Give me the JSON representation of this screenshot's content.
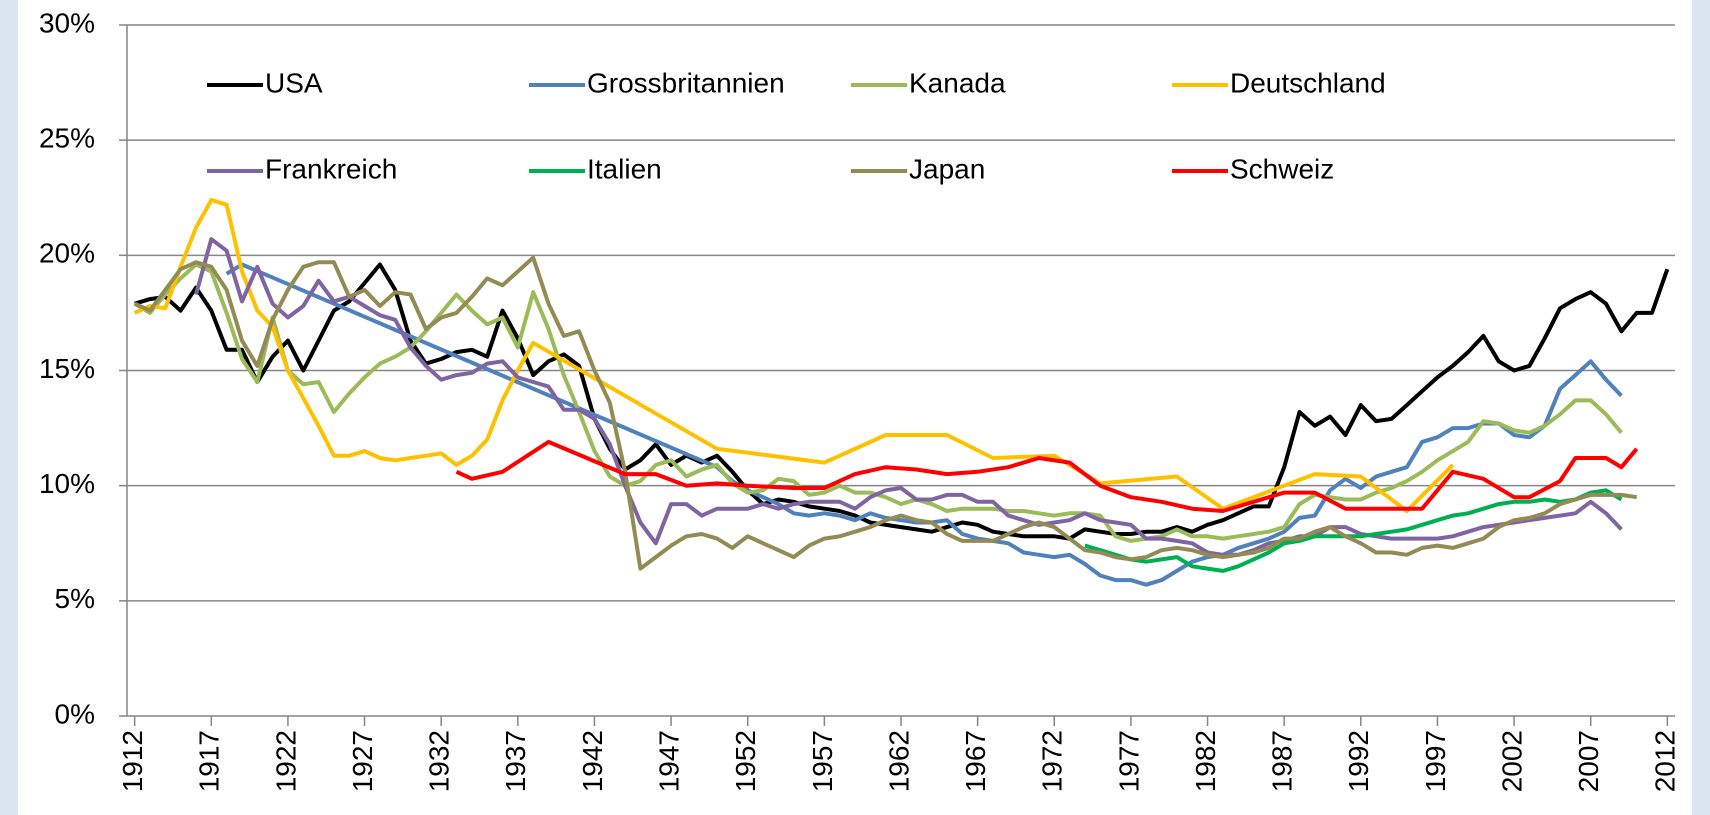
{
  "chart_data": {
    "type": "line",
    "xlim": [
      1911.5,
      2012.5
    ],
    "xticks": [
      1912,
      1917,
      1922,
      1927,
      1932,
      1937,
      1942,
      1947,
      1952,
      1957,
      1962,
      1967,
      1972,
      1977,
      1982,
      1987,
      1992,
      1997,
      2002,
      2007,
      2012
    ],
    "ylim": [
      0,
      30
    ],
    "yticks": [
      {
        "value": 0,
        "label": "0%"
      },
      {
        "value": 5,
        "label": "5%"
      },
      {
        "value": 10,
        "label": "10%"
      },
      {
        "value": 15,
        "label": "15%"
      },
      {
        "value": 20,
        "label": "20%"
      },
      {
        "value": 25,
        "label": "25%"
      },
      {
        "value": 30,
        "label": "30%"
      }
    ],
    "grid": true,
    "legend": "top",
    "series": [
      {
        "name": "USA",
        "color": "#000000",
        "x": [
          1912,
          1913,
          1914,
          1915,
          1916,
          1917,
          1918,
          1919,
          1920,
          1921,
          1922,
          1923,
          1924,
          1925,
          1926,
          1927,
          1928,
          1929,
          1930,
          1931,
          1932,
          1933,
          1934,
          1935,
          1936,
          1937,
          1938,
          1939,
          1940,
          1941,
          1942,
          1943,
          1944,
          1945,
          1946,
          1947,
          1948,
          1949,
          1950,
          1951,
          1952,
          1953,
          1954,
          1955,
          1956,
          1957,
          1958,
          1959,
          1960,
          1961,
          1962,
          1963,
          1964,
          1965,
          1966,
          1967,
          1968,
          1969,
          1970,
          1971,
          1972,
          1973,
          1974,
          1975,
          1976,
          1977,
          1978,
          1979,
          1980,
          1981,
          1982,
          1983,
          1984,
          1985,
          1986,
          1987,
          1988,
          1989,
          1990,
          1991,
          1992,
          1993,
          1994,
          1995,
          1996,
          1997,
          1998,
          1999,
          2000,
          2001,
          2002,
          2003,
          2004,
          2005,
          2006,
          2007,
          2008,
          2009,
          2010,
          2011,
          2012
        ],
        "values": [
          17.9,
          18.1,
          18.2,
          17.6,
          18.6,
          17.6,
          15.9,
          15.9,
          14.5,
          15.6,
          16.3,
          15.0,
          16.3,
          17.6,
          18.0,
          18.8,
          19.6,
          18.5,
          16.3,
          15.3,
          15.5,
          15.8,
          15.9,
          15.6,
          17.6,
          16.4,
          14.8,
          15.4,
          15.7,
          15.2,
          12.9,
          11.6,
          10.7,
          11.1,
          11.8,
          10.9,
          11.3,
          11.0,
          11.3,
          10.6,
          9.8,
          9.2,
          9.4,
          9.3,
          9.1,
          9.0,
          8.9,
          8.7,
          8.4,
          8.3,
          8.2,
          8.1,
          8.0,
          8.2,
          8.4,
          8.3,
          8.0,
          7.9,
          7.8,
          7.8,
          7.8,
          7.7,
          8.1,
          8.0,
          7.9,
          7.9,
          8.0,
          8.0,
          8.2,
          8.0,
          8.3,
          8.5,
          8.8,
          9.1,
          9.1,
          10.8,
          13.2,
          12.6,
          13.0,
          12.2,
          13.5,
          12.8,
          12.9,
          13.5,
          14.1,
          14.7,
          15.2,
          15.8,
          16.5,
          15.4,
          15.0,
          15.2,
          16.4,
          17.7,
          18.1,
          18.4,
          17.9,
          16.7,
          17.5,
          17.5,
          19.4
        ]
      },
      {
        "name": "Grossbritannien",
        "color": "#4f81bd",
        "x": [
          1918,
          1919,
          1950,
          1951,
          1952,
          1953,
          1954,
          1955,
          1956,
          1957,
          1958,
          1959,
          1960,
          1961,
          1962,
          1963,
          1964,
          1965,
          1966,
          1967,
          1968,
          1969,
          1970,
          1971,
          1972,
          1973,
          1974,
          1975,
          1976,
          1977,
          1978,
          1979,
          1980,
          1981,
          1982,
          1983,
          1984,
          1985,
          1986,
          1987,
          1988,
          1989,
          1990,
          1991,
          1992,
          1993,
          1994,
          1995,
          1996,
          1997,
          1998,
          1999,
          2000,
          2001,
          2002,
          2003,
          2004,
          2005,
          2006,
          2007,
          2008,
          2009
        ],
        "values": [
          19.2,
          19.6,
          10.8,
          10.2,
          9.8,
          9.5,
          9.2,
          8.8,
          8.7,
          8.8,
          8.7,
          8.5,
          8.8,
          8.6,
          8.5,
          8.4,
          8.4,
          8.5,
          7.9,
          7.7,
          7.6,
          7.5,
          7.1,
          7.0,
          6.9,
          7.0,
          6.6,
          6.1,
          5.9,
          5.9,
          5.7,
          5.9,
          6.3,
          6.7,
          6.9,
          7.0,
          7.3,
          7.5,
          7.7,
          8.0,
          8.6,
          8.7,
          9.8,
          10.3,
          9.9,
          10.4,
          10.6,
          10.8,
          11.9,
          12.1,
          12.5,
          12.5,
          12.7,
          12.7,
          12.2,
          12.1,
          12.6,
          14.2,
          14.8,
          15.4,
          14.6,
          13.9
        ]
      },
      {
        "name": "Kanada",
        "color": "#9bbb59",
        "x": [
          1912,
          1913,
          1914,
          1915,
          1916,
          1917,
          1918,
          1919,
          1920,
          1921,
          1922,
          1923,
          1924,
          1925,
          1926,
          1927,
          1928,
          1929,
          1930,
          1931,
          1932,
          1933,
          1934,
          1935,
          1936,
          1937,
          1938,
          1939,
          1940,
          1941,
          1942,
          1943,
          1944,
          1945,
          1946,
          1947,
          1948,
          1949,
          1950,
          1951,
          1952,
          1953,
          1954,
          1955,
          1956,
          1957,
          1958,
          1959,
          1960,
          1961,
          1962,
          1963,
          1964,
          1965,
          1966,
          1967,
          1968,
          1969,
          1970,
          1971,
          1972,
          1973,
          1974,
          1975,
          1976,
          1977,
          1978,
          1979,
          1980,
          1981,
          1982,
          1983,
          1984,
          1985,
          1986,
          1987,
          1988,
          1989,
          1990,
          1991,
          1992,
          1993,
          1994,
          1995,
          1996,
          1997,
          1998,
          1999,
          2000,
          2001,
          2002,
          2003,
          2004,
          2005,
          2006,
          2007,
          2008,
          2009
        ],
        "values": [
          17.9,
          17.5,
          18.3,
          19.0,
          19.6,
          19.3,
          17.5,
          15.5,
          14.5,
          17.3,
          15.0,
          14.4,
          14.5,
          13.2,
          14.0,
          14.7,
          15.3,
          15.6,
          16.0,
          16.7,
          17.5,
          18.3,
          17.6,
          17.0,
          17.3,
          16.0,
          18.4,
          16.8,
          14.8,
          13.2,
          11.5,
          10.4,
          10.0,
          10.2,
          10.9,
          11.1,
          10.4,
          10.7,
          10.9,
          10.1,
          9.7,
          9.8,
          10.3,
          10.2,
          9.6,
          9.7,
          10.0,
          9.7,
          9.7,
          9.5,
          9.2,
          9.4,
          9.2,
          8.9,
          9.0,
          9.0,
          9.0,
          8.9,
          8.9,
          8.8,
          8.7,
          8.8,
          8.8,
          8.7,
          7.8,
          7.6,
          7.7,
          7.8,
          8.1,
          7.8,
          7.8,
          7.7,
          7.8,
          7.9,
          8.0,
          8.2,
          9.2,
          9.6,
          9.5,
          9.4,
          9.4,
          9.7,
          9.9,
          10.2,
          10.6,
          11.1,
          11.5,
          11.9,
          12.8,
          12.7,
          12.4,
          12.3,
          12.6,
          13.1,
          13.7,
          13.7,
          13.1,
          12.3
        ]
      },
      {
        "name": "Deutschland",
        "color": "#ffc000",
        "x": [
          1912,
          1913,
          1914,
          1915,
          1916,
          1917,
          1918,
          1919,
          1920,
          1921,
          1922,
          1923,
          1924,
          1925,
          1926,
          1927,
          1928,
          1929,
          1930,
          1931,
          1932,
          1933,
          1934,
          1935,
          1936,
          1937,
          1938,
          1950,
          1957,
          1961,
          1965,
          1968,
          1972,
          1975,
          1980,
          1983,
          1989,
          1992,
          1995,
          1998
        ],
        "values": [
          17.5,
          17.8,
          17.7,
          19.5,
          21.2,
          22.4,
          22.2,
          19.3,
          17.6,
          16.9,
          15.0,
          13.8,
          12.6,
          11.3,
          11.3,
          11.5,
          11.2,
          11.1,
          11.2,
          11.3,
          11.4,
          10.9,
          11.3,
          12.0,
          13.7,
          15.0,
          16.2,
          11.6,
          11.0,
          12.2,
          12.2,
          11.2,
          11.3,
          10.1,
          10.4,
          9.0,
          10.5,
          10.4,
          8.9,
          10.9
        ]
      },
      {
        "name": "Frankreich",
        "color": "#8064a2",
        "x": [
          1916,
          1917,
          1918,
          1919,
          1920,
          1921,
          1922,
          1923,
          1924,
          1925,
          1926,
          1927,
          1928,
          1929,
          1930,
          1931,
          1932,
          1933,
          1934,
          1935,
          1936,
          1937,
          1938,
          1939,
          1940,
          1941,
          1942,
          1943,
          1944,
          1945,
          1946,
          1947,
          1948,
          1949,
          1950,
          1951,
          1952,
          1953,
          1954,
          1955,
          1956,
          1957,
          1958,
          1959,
          1960,
          1961,
          1962,
          1963,
          1964,
          1965,
          1966,
          1967,
          1968,
          1969,
          1970,
          1971,
          1972,
          1973,
          1974,
          1975,
          1976,
          1977,
          1978,
          1979,
          1980,
          1981,
          1982,
          1983,
          1984,
          1985,
          1986,
          1987,
          1988,
          1989,
          1990,
          1991,
          1992,
          1993,
          1994,
          1995,
          1996,
          1997,
          1998,
          1999,
          2000,
          2001,
          2002,
          2003,
          2004,
          2005,
          2006,
          2007,
          2008,
          2009
        ],
        "values": [
          18.3,
          20.7,
          20.2,
          18.0,
          19.5,
          17.9,
          17.3,
          17.8,
          18.9,
          18.0,
          18.2,
          17.8,
          17.4,
          17.2,
          16.0,
          15.2,
          14.6,
          14.8,
          14.9,
          15.3,
          15.4,
          14.7,
          14.5,
          14.3,
          13.3,
          13.3,
          12.9,
          11.8,
          10.0,
          8.4,
          7.5,
          9.2,
          9.2,
          8.7,
          9.0,
          9.0,
          9.0,
          9.2,
          9.0,
          9.2,
          9.3,
          9.3,
          9.3,
          9.0,
          9.5,
          9.8,
          9.9,
          9.4,
          9.4,
          9.6,
          9.6,
          9.3,
          9.3,
          8.7,
          8.5,
          8.3,
          8.4,
          8.5,
          8.8,
          8.5,
          8.4,
          8.3,
          7.7,
          7.7,
          7.6,
          7.5,
          7.1,
          7.0,
          7.0,
          7.2,
          7.5,
          7.6,
          7.8,
          7.8,
          8.2,
          8.2,
          7.9,
          7.8,
          7.7,
          7.7,
          7.7,
          7.7,
          7.8,
          8.0,
          8.2,
          8.3,
          8.4,
          8.5,
          8.6,
          8.7,
          8.8,
          9.3,
          8.8,
          8.1
        ]
      },
      {
        "name": "Italien",
        "color": "#00b050",
        "x": [
          1974,
          1975,
          1976,
          1977,
          1978,
          1979,
          1980,
          1981,
          1982,
          1983,
          1984,
          1985,
          1986,
          1987,
          1988,
          1989,
          1990,
          1991,
          1992,
          1993,
          1994,
          1995,
          1996,
          1997,
          1998,
          1999,
          2000,
          2001,
          2002,
          2003,
          2004,
          2005,
          2006,
          2007,
          2008,
          2009
        ],
        "values": [
          7.4,
          7.2,
          7.0,
          6.8,
          6.7,
          6.8,
          6.9,
          6.5,
          6.4,
          6.3,
          6.5,
          6.8,
          7.1,
          7.5,
          7.6,
          7.8,
          7.8,
          7.8,
          7.8,
          7.9,
          8.0,
          8.1,
          8.3,
          8.5,
          8.7,
          8.8,
          9.0,
          9.2,
          9.3,
          9.3,
          9.4,
          9.3,
          9.4,
          9.7,
          9.8,
          9.4
        ]
      },
      {
        "name": "Japan",
        "color": "#948a54",
        "x": [
          1912,
          1913,
          1914,
          1915,
          1916,
          1917,
          1918,
          1919,
          1920,
          1921,
          1922,
          1923,
          1924,
          1925,
          1926,
          1927,
          1928,
          1929,
          1930,
          1931,
          1932,
          1933,
          1934,
          1935,
          1936,
          1937,
          1938,
          1939,
          1940,
          1941,
          1942,
          1943,
          1944,
          1945,
          1946,
          1947,
          1948,
          1949,
          1950,
          1951,
          1952,
          1953,
          1954,
          1955,
          1956,
          1957,
          1958,
          1959,
          1960,
          1961,
          1962,
          1963,
          1964,
          1965,
          1966,
          1967,
          1968,
          1969,
          1970,
          1971,
          1972,
          1973,
          1974,
          1975,
          1976,
          1977,
          1978,
          1979,
          1980,
          1981,
          1982,
          1983,
          1984,
          1985,
          1986,
          1987,
          1988,
          1989,
          1990,
          1991,
          1992,
          1993,
          1994,
          1995,
          1996,
          1997,
          1998,
          1999,
          2000,
          2001,
          2002,
          2003,
          2004,
          2005,
          2006,
          2007,
          2008,
          2009,
          2010
        ],
        "values": [
          17.9,
          17.6,
          18.5,
          19.4,
          19.7,
          19.5,
          18.5,
          16.3,
          15.2,
          17.2,
          18.5,
          19.5,
          19.7,
          19.7,
          18.2,
          18.5,
          17.8,
          18.4,
          18.3,
          16.8,
          17.3,
          17.5,
          18.2,
          19.0,
          18.7,
          19.3,
          19.9,
          17.9,
          16.5,
          16.7,
          15.0,
          13.6,
          10.6,
          6.4,
          6.9,
          7.4,
          7.8,
          7.9,
          7.7,
          7.3,
          7.8,
          7.5,
          7.2,
          6.9,
          7.4,
          7.7,
          7.8,
          8.0,
          8.2,
          8.5,
          8.7,
          8.5,
          8.4,
          7.9,
          7.6,
          7.6,
          7.6,
          7.9,
          8.2,
          8.4,
          8.2,
          7.7,
          7.2,
          7.1,
          6.9,
          6.8,
          6.9,
          7.2,
          7.3,
          7.2,
          7.0,
          6.9,
          7.0,
          7.1,
          7.3,
          7.7,
          7.7,
          8.0,
          8.2,
          7.8,
          7.5,
          7.1,
          7.1,
          7.0,
          7.3,
          7.4,
          7.3,
          7.5,
          7.7,
          8.2,
          8.5,
          8.6,
          8.8,
          9.2,
          9.4,
          9.6,
          9.6,
          9.6,
          9.5
        ]
      },
      {
        "name": "Schweiz",
        "color": "#ff0000",
        "x": [
          1933,
          1934,
          1936,
          1939,
          1944,
          1946,
          1948,
          1950,
          1952,
          1955,
          1957,
          1959,
          1961,
          1963,
          1965,
          1967,
          1969,
          1971,
          1973,
          1975,
          1977,
          1979,
          1981,
          1983,
          1985,
          1987,
          1989,
          1991,
          1994,
          1996,
          1998,
          2000,
          2002,
          2003,
          2005,
          2006,
          2008,
          2009,
          2010
        ],
        "values": [
          10.6,
          10.3,
          10.6,
          11.9,
          10.5,
          10.5,
          10.0,
          10.1,
          10.0,
          9.9,
          9.9,
          10.5,
          10.8,
          10.7,
          10.5,
          10.6,
          10.8,
          11.2,
          11.0,
          10.0,
          9.5,
          9.3,
          9.0,
          8.9,
          9.3,
          9.7,
          9.7,
          9.0,
          9.0,
          9.0,
          10.6,
          10.3,
          9.5,
          9.5,
          10.2,
          11.2,
          11.2,
          10.8,
          11.6
        ]
      }
    ]
  }
}
